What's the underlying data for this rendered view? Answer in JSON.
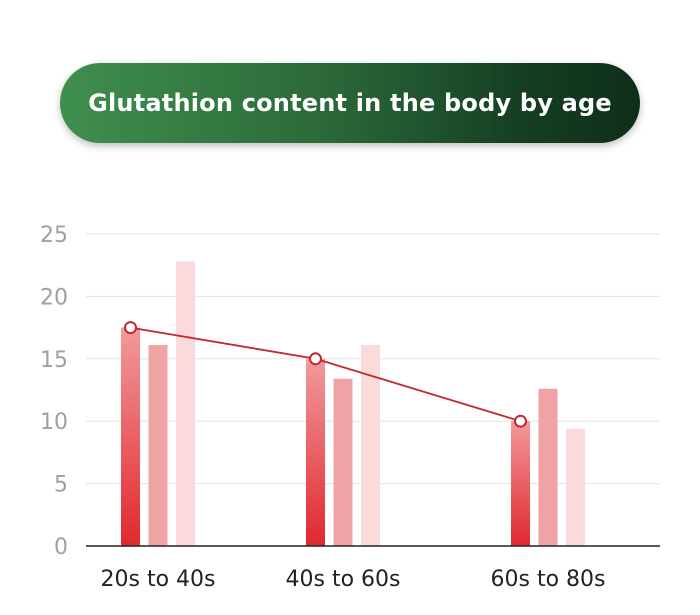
{
  "chart_data": {
    "type": "bar",
    "title": "Glutathion content in the body by age",
    "categories": [
      "20s to 40s",
      "40s to 60s",
      "60s to 80s"
    ],
    "series": [
      {
        "values": [
          17.5,
          15.0,
          10.0
        ],
        "color": "#e23a3f"
      },
      {
        "values": [
          16.1,
          13.4,
          12.6
        ],
        "color": "#f0a3a4"
      },
      {
        "values": [
          22.8,
          16.1,
          9.4
        ],
        "color": "#fadadb"
      }
    ],
    "trend_line": {
      "values": [
        17.5,
        15.0,
        10.0
      ],
      "color": "#c0292e"
    },
    "ylim": [
      0,
      25
    ],
    "yticks": [
      "0",
      "5",
      "10",
      "15",
      "20",
      "25"
    ],
    "grid": true,
    "xlabel": "",
    "ylabel": ""
  }
}
